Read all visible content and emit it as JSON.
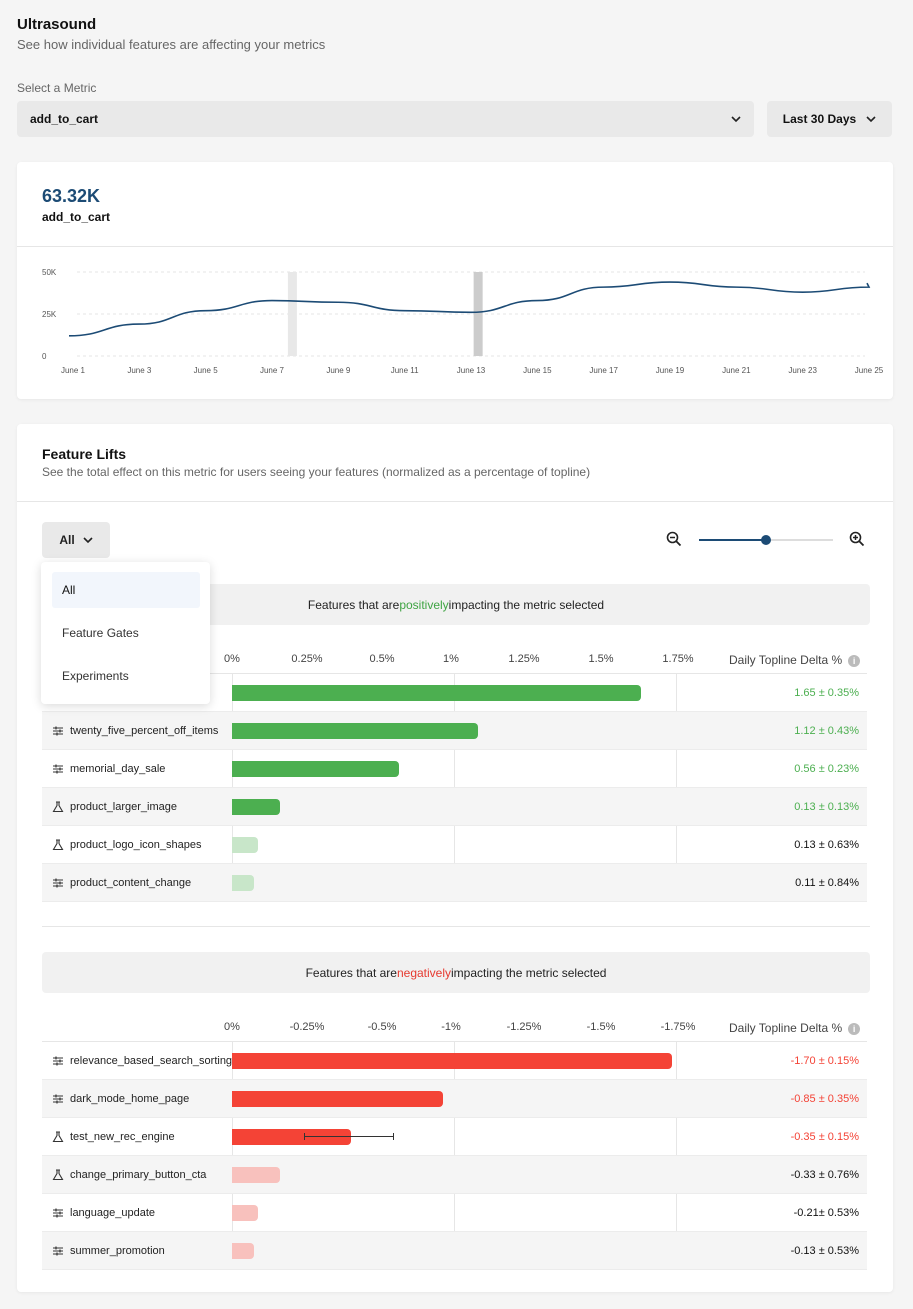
{
  "header": {
    "title": "Ultrasound",
    "subtitle": "See how individual features are affecting your metrics",
    "select_label": "Select a Metric",
    "metric_value": "add_to_cart",
    "range_value": "Last 30 Days"
  },
  "summary": {
    "value": "63.32K",
    "metric": "add_to_cart"
  },
  "chart_data": {
    "type": "line",
    "title": "",
    "x": [
      "June 1",
      "June 3",
      "June 5",
      "June 7",
      "June 9",
      "June 11",
      "June 13",
      "June 15",
      "June 17",
      "June 19",
      "June 21",
      "June 23",
      "June 25"
    ],
    "y_ticks": [
      "50K",
      "25K",
      "0"
    ],
    "ylim": [
      0,
      50000
    ],
    "series": [
      {
        "name": "add_to_cart",
        "values": [
          12000,
          19000,
          27000,
          33000,
          32000,
          27000,
          26000,
          33000,
          41000,
          44000,
          41000,
          38000,
          41000
        ]
      }
    ],
    "highlight_ranges": [
      "June 7",
      "June 13"
    ]
  },
  "lifts": {
    "title": "Feature Lifts",
    "subtitle": "See the total effect on this metric for users seeing your features (normalized as a percentage of topline)",
    "filter_value": "All",
    "dropdown": [
      "All",
      "Feature Gates",
      "Experiments"
    ],
    "value_header": "Daily Topline Delta %",
    "positive": {
      "banner_pre": "Features that are ",
      "banner_word": "positively",
      "banner_post": " impacting the metric selected",
      "axis": [
        "0%",
        "0.25%",
        "0.5%",
        "1%",
        "1.25%",
        "1.5%",
        "1.75%"
      ],
      "rows": [
        {
          "name": "",
          "icon": "gate",
          "value": "1.65 ± 0.35%",
          "fraction": 0.93,
          "significant": true
        },
        {
          "name": "twenty_five_percent_off_items",
          "icon": "gate",
          "value": "1.12 ± 0.43%",
          "fraction": 0.56,
          "significant": true
        },
        {
          "name": "memorial_day_sale",
          "icon": "gate",
          "value": "0.56 ± 0.23%",
          "fraction": 0.38,
          "significant": true
        },
        {
          "name": "product_larger_image",
          "icon": "experiment",
          "value": "0.13 ± 0.13%",
          "fraction": 0.11,
          "significant": true
        },
        {
          "name": "product_logo_icon_shapes",
          "icon": "experiment",
          "value": "0.13 ± 0.63%",
          "fraction": 0.06,
          "significant": false
        },
        {
          "name": "product_content_change",
          "icon": "gate",
          "value": "0.11 ± 0.84%",
          "fraction": 0.05,
          "significant": false
        }
      ]
    },
    "negative": {
      "banner_pre": "Features that are ",
      "banner_word": "negatively",
      "banner_post": " impacting the metric selected",
      "axis": [
        "0%",
        "-0.25%",
        "-0.5%",
        "-1%",
        "-1.25%",
        "-1.5%",
        "-1.75%"
      ],
      "rows": [
        {
          "name": "relevance_based_search_sorting",
          "icon": "gate",
          "value": "-1.70 ± 0.15%",
          "fraction": 1.0,
          "significant": true
        },
        {
          "name": "dark_mode_home_page",
          "icon": "gate",
          "value": "-0.85 ± 0.35%",
          "fraction": 0.48,
          "significant": true
        },
        {
          "name": "test_new_rec_engine",
          "icon": "experiment",
          "value": "-0.35 ± 0.15%",
          "fraction": 0.27,
          "significant": true
        },
        {
          "name": "change_primary_button_cta",
          "icon": "experiment",
          "value": "-0.33 ± 0.76%",
          "fraction": 0.11,
          "significant": false
        },
        {
          "name": "language_update",
          "icon": "gate",
          "value": "-0.21± 0.53%",
          "fraction": 0.06,
          "significant": false
        },
        {
          "name": "summer_promotion",
          "icon": "gate",
          "value": "-0.13 ± 0.53%",
          "fraction": 0.05,
          "significant": false
        }
      ]
    }
  }
}
